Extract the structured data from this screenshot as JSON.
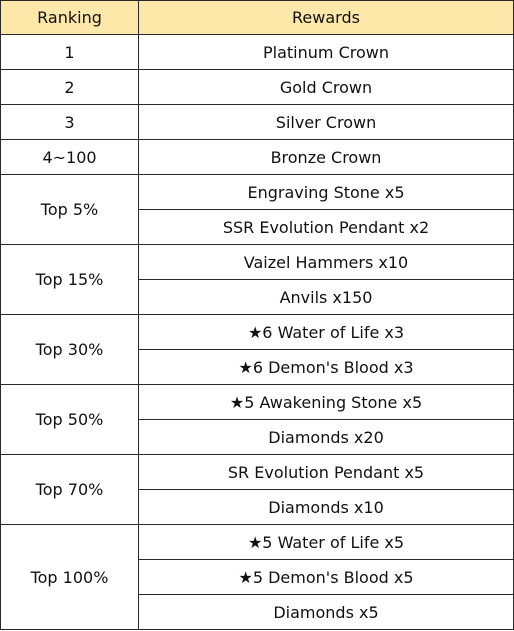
{
  "headers": {
    "ranking": "Ranking",
    "rewards": "Rewards"
  },
  "rows": [
    {
      "rank": "1",
      "rewards": [
        "Platinum Crown"
      ]
    },
    {
      "rank": "2",
      "rewards": [
        "Gold Crown"
      ]
    },
    {
      "rank": "3",
      "rewards": [
        "Silver Crown"
      ]
    },
    {
      "rank": "4~100",
      "rewards": [
        "Bronze Crown"
      ]
    },
    {
      "rank": "Top 5%",
      "rewards": [
        "Engraving Stone x5",
        "SSR Evolution Pendant x2"
      ]
    },
    {
      "rank": "Top 15%",
      "rewards": [
        "Vaizel Hammers x10",
        "Anvils x150"
      ]
    },
    {
      "rank": "Top 30%",
      "rewards": [
        "★6 Water of Life x3",
        "★6 Demon's Blood x3"
      ]
    },
    {
      "rank": "Top 50%",
      "rewards": [
        "★5 Awakening Stone x5",
        "Diamonds x20"
      ]
    },
    {
      "rank": "Top 70%",
      "rewards": [
        "SR Evolution Pendant x5",
        "Diamonds x10"
      ]
    },
    {
      "rank": "Top 100%",
      "rewards": [
        "★5 Water of Life x5",
        "★5 Demon's Blood x5",
        "Diamonds x5"
      ]
    }
  ],
  "colors": {
    "header_bg": "#fde7a9",
    "border": "#2a2a2a"
  }
}
